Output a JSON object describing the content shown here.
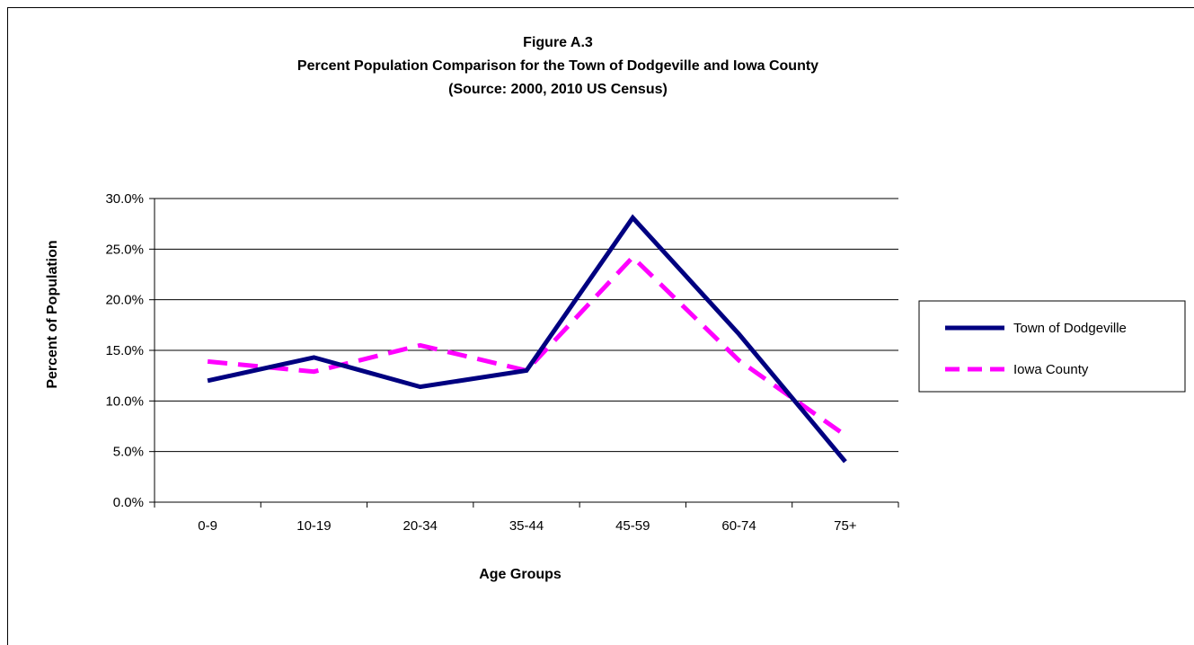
{
  "chart_data": {
    "type": "line",
    "title_lines": [
      "Figure A.3",
      "Percent Population Comparison for the Town of Dodgeville and Iowa County",
      "(Source:  2000, 2010 US Census)"
    ],
    "xlabel": "Age Groups",
    "ylabel": "Percent of Population",
    "categories": [
      "0-9",
      "10-19",
      "20-34",
      "35-44",
      "45-59",
      "60-74",
      "75+"
    ],
    "ylim": [
      0,
      30
    ],
    "yticks": [
      "0.0%",
      "5.0%",
      "10.0%",
      "15.0%",
      "20.0%",
      "25.0%",
      "30.0%"
    ],
    "grid": true,
    "legend_position": "right",
    "series": [
      {
        "name": "Town of Dodgeville",
        "values": [
          12.0,
          14.3,
          11.4,
          13.0,
          28.1,
          16.6,
          4.0
        ],
        "color": "#000080",
        "style": "solid"
      },
      {
        "name": "Iowa County",
        "values": [
          13.9,
          12.9,
          15.5,
          13.0,
          24.2,
          14.0,
          6.6
        ],
        "color": "#ff00ff",
        "style": "dashed"
      }
    ]
  }
}
